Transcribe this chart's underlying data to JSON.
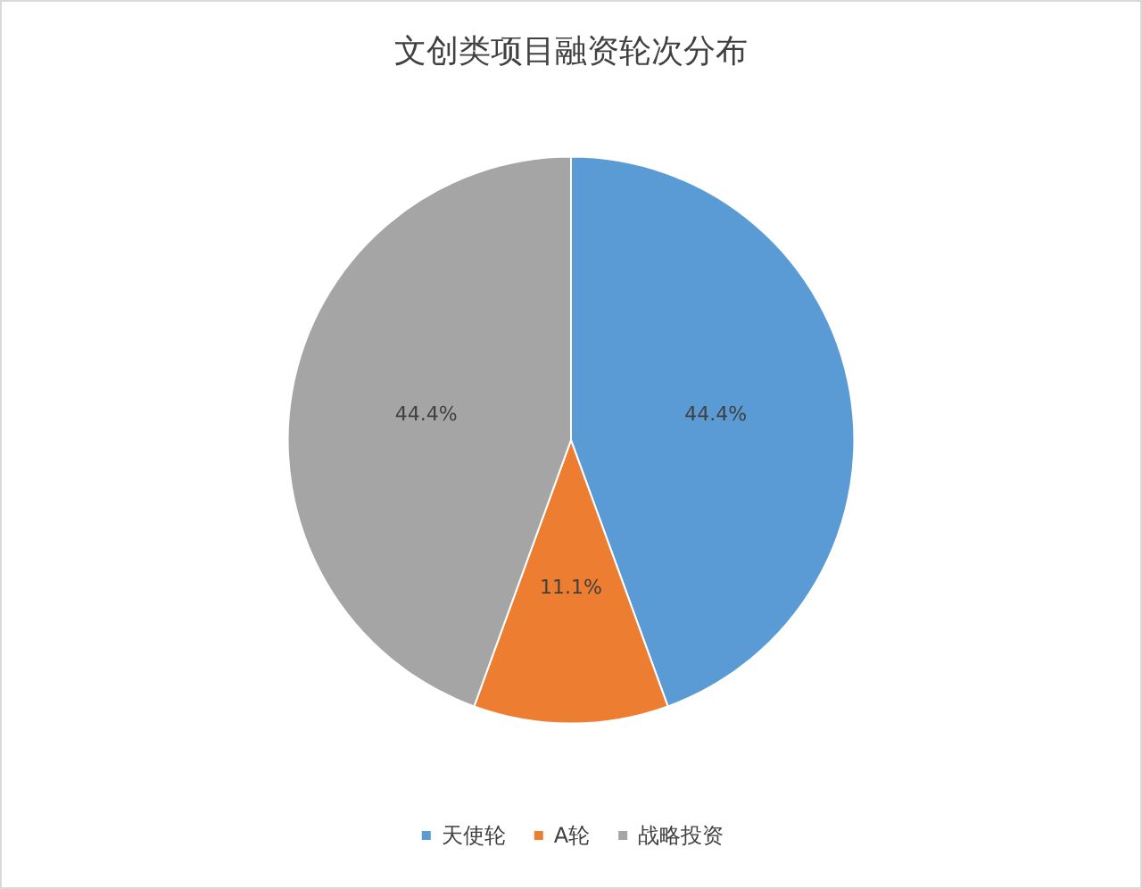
{
  "chart_data": {
    "type": "pie",
    "title": "文创类项目融资轮次分布",
    "categories": [
      "天使轮",
      "A轮",
      "战略投资"
    ],
    "values": [
      44.4,
      11.1,
      44.4
    ],
    "colors": [
      "#5b9bd5",
      "#ed7d31",
      "#a5a5a5"
    ],
    "value_labels": [
      "44.4%",
      "11.1%",
      "44.4%"
    ],
    "legend": "bottom"
  }
}
